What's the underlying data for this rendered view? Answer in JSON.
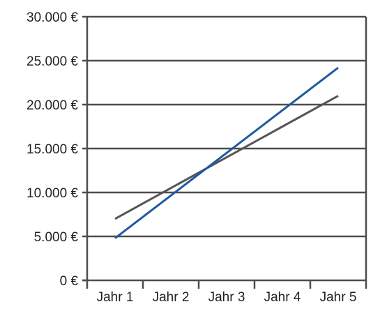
{
  "chart_data": {
    "type": "line",
    "categories": [
      "Jahr 1",
      "Jahr 2",
      "Jahr 3",
      "Jahr 4",
      "Jahr 5"
    ],
    "y_ticks": [
      "0 €",
      "5.000 €",
      "10.000 €",
      "15.000 €",
      "20.000 €",
      "25.000 €",
      "30.000 €"
    ],
    "ylim": [
      0,
      30000
    ],
    "grid": true,
    "legend": "none",
    "series": [
      {
        "color": "#555555",
        "values": [
          7000,
          10500,
          14000,
          17500,
          21000
        ]
      },
      {
        "color": "#1f5aa0",
        "values": [
          4800,
          9650,
          14500,
          19350,
          24200
        ]
      }
    ]
  }
}
